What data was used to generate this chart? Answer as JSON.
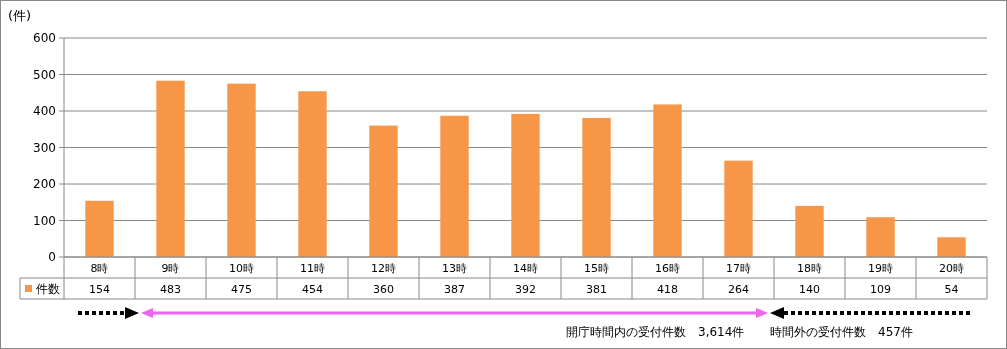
{
  "chart_data": {
    "type": "bar",
    "ylabel": "(件)",
    "categories": [
      "8時",
      "9時",
      "10時",
      "11時",
      "12時",
      "13時",
      "14時",
      "15時",
      "16時",
      "17時",
      "18時",
      "19時",
      "20時"
    ],
    "series": [
      {
        "name": "件数",
        "color": "#f79646",
        "values": [
          154,
          483,
          475,
          454,
          360,
          387,
          392,
          381,
          418,
          264,
          140,
          109,
          54
        ]
      }
    ],
    "ylim": [
      0,
      600
    ],
    "yticks": [
      0,
      100,
      200,
      300,
      400,
      500,
      600
    ],
    "grid": "y",
    "data_labels": true,
    "annotations": [
      "開庁時間内の受付件数　3,614件",
      "時間外の受付件数　457件"
    ]
  }
}
